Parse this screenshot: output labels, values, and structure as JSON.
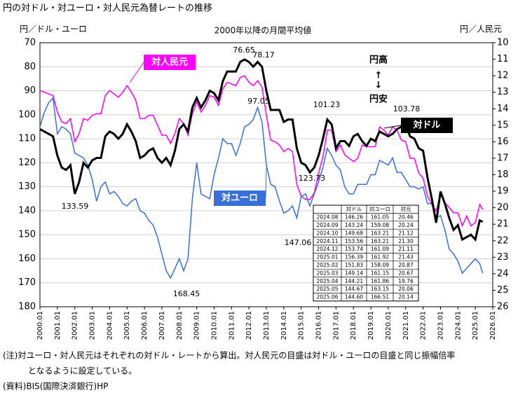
{
  "chart_data": {
    "type": "line",
    "title": "円の対ドル・対ユーロ・対人民元為替レートの推移",
    "subtitle": "2000年以降の月間平均値",
    "y_label": "円／ドル・ユーロ",
    "y2_label": "円／人民元",
    "x": [
      2000,
      2000.25,
      2000.5,
      2000.75,
      2001,
      2001.25,
      2001.5,
      2001.75,
      2002,
      2002.25,
      2002.5,
      2002.75,
      2003,
      2003.25,
      2003.5,
      2003.75,
      2004,
      2004.25,
      2004.5,
      2004.75,
      2005,
      2005.25,
      2005.5,
      2005.75,
      2006,
      2006.25,
      2006.5,
      2006.75,
      2007,
      2007.25,
      2007.5,
      2007.75,
      2008,
      2008.25,
      2008.5,
      2008.75,
      2009,
      2009.25,
      2009.5,
      2009.75,
      2010,
      2010.25,
      2010.5,
      2010.75,
      2011,
      2011.25,
      2011.5,
      2011.75,
      2012,
      2012.25,
      2012.5,
      2012.75,
      2013,
      2013.25,
      2013.5,
      2013.75,
      2014,
      2014.25,
      2014.5,
      2014.75,
      2015,
      2015.25,
      2015.5,
      2015.75,
      2016,
      2016.25,
      2016.5,
      2016.75,
      2017,
      2017.25,
      2017.5,
      2017.75,
      2018,
      2018.25,
      2018.5,
      2018.75,
      2019,
      2019.25,
      2019.5,
      2019.75,
      2020,
      2020.25,
      2020.5,
      2020.75,
      2021,
      2021.25,
      2021.5,
      2021.75,
      2022,
      2022.25,
      2022.5,
      2022.75,
      2023,
      2023.25,
      2023.5,
      2023.75,
      2024,
      2024.25,
      2024.5,
      2024.75,
      2025,
      2025.25,
      2025.42
    ],
    "series": [
      {
        "name": "対ドル",
        "color": "#000000",
        "values": [
          106,
          107,
          108,
          109,
          117,
          122,
          123,
          121,
          133,
          128,
          120,
          122,
          119,
          118,
          118,
          109,
          107,
          108,
          110,
          108,
          104,
          107,
          111,
          118,
          117,
          115,
          114,
          118,
          120,
          118,
          121,
          115,
          106,
          104,
          107,
          97,
          93,
          97,
          94,
          90,
          91,
          94,
          86,
          82,
          82,
          82,
          78,
          77,
          78,
          80,
          78,
          80,
          90,
          98,
          98,
          98,
          103,
          102,
          102,
          114,
          120,
          121,
          124,
          122,
          117,
          110,
          102,
          104,
          114,
          111,
          111,
          113,
          109,
          108,
          111,
          113,
          110,
          111,
          107,
          108,
          109,
          108,
          106,
          105,
          104,
          109,
          110,
          114,
          115,
          126,
          135,
          145,
          132,
          137,
          143,
          148,
          146,
          152,
          151,
          150,
          152,
          144,
          144.6
        ]
      },
      {
        "name": "対ユーロ",
        "color": "#3a6fd8",
        "values": [
          105,
          99,
          95,
          93,
          108,
          105,
          106,
          108,
          116,
          117,
          118,
          121,
          127,
          136,
          130,
          128,
          133,
          132,
          134,
          137,
          138,
          136,
          135,
          140,
          141,
          144,
          146,
          151,
          158,
          165,
          168,
          164,
          160,
          165,
          160,
          135,
          120,
          133,
          134,
          135,
          125,
          118,
          110,
          112,
          112,
          117,
          112,
          105,
          104,
          102,
          97,
          103,
          121,
          129,
          130,
          136,
          141,
          140,
          138,
          143,
          134,
          133,
          138,
          133,
          128,
          122,
          114,
          117,
          121,
          123,
          130,
          133,
          133,
          129,
          129,
          129,
          125,
          125,
          119,
          120,
          121,
          118,
          124,
          124,
          127,
          130,
          130,
          131,
          130,
          137,
          137,
          143,
          142,
          148,
          156,
          158,
          161,
          166,
          164,
          162,
          160,
          162,
          166
        ]
      },
      {
        "name": "対人民元",
        "color": "#ff00ff",
        "axis": "y2",
        "values": [
          12.9,
          13.0,
          13.1,
          13.2,
          14.2,
          14.8,
          14.9,
          14.6,
          16.0,
          15.5,
          14.6,
          14.7,
          14.4,
          14.3,
          14.3,
          13.2,
          12.9,
          13.1,
          13.3,
          13.0,
          12.6,
          13.0,
          13.5,
          14.6,
          14.6,
          14.4,
          14.4,
          15.0,
          15.6,
          15.6,
          16.1,
          15.5,
          14.6,
          14.9,
          15.6,
          14.3,
          13.6,
          14.2,
          13.8,
          13.2,
          13.3,
          13.8,
          12.8,
          12.4,
          12.5,
          12.6,
          12.1,
          12.0,
          12.4,
          12.6,
          12.3,
          12.7,
          14.4,
          15.9,
          16.0,
          16.2,
          16.6,
          16.4,
          16.6,
          18.6,
          19.3,
          19.5,
          19.5,
          19.1,
          17.9,
          16.9,
          15.3,
          15.3,
          16.6,
          16.2,
          16.8,
          17.0,
          17.2,
          17.0,
          16.2,
          16.3,
          16.3,
          16.3,
          15.1,
          15.3,
          15.6,
          15.1,
          15.3,
          15.9,
          16.0,
          17.0,
          17.0,
          17.9,
          18.2,
          19.3,
          19.8,
          20.2,
          19.2,
          19.7,
          20.0,
          20.3,
          20.3,
          21.1,
          20.5,
          21.1,
          20.9,
          19.8,
          20.1
        ]
      }
    ],
    "xlim": [
      2000,
      2026
    ],
    "xticks": [
      {
        "value": 2000,
        "label": "2000.01"
      },
      {
        "value": 2001,
        "label": "2001.01"
      },
      {
        "value": 2002,
        "label": "2002.01"
      },
      {
        "value": 2003,
        "label": "2003.01"
      },
      {
        "value": 2004,
        "label": "2004.01"
      },
      {
        "value": 2005,
        "label": "2005.01"
      },
      {
        "value": 2006,
        "label": "2006.01"
      },
      {
        "value": 2007,
        "label": "2007.01"
      },
      {
        "value": 2008,
        "label": "2008.01"
      },
      {
        "value": 2009,
        "label": "2009.01"
      },
      {
        "value": 2010,
        "label": "2010.01"
      },
      {
        "value": 2011,
        "label": "2011.01"
      },
      {
        "value": 2012,
        "label": "2012.01"
      },
      {
        "value": 2013,
        "label": "2013.01"
      },
      {
        "value": 2014,
        "label": "2014.01"
      },
      {
        "value": 2015,
        "label": "2015.01"
      },
      {
        "value": 2016,
        "label": "2016.01"
      },
      {
        "value": 2017,
        "label": "2017.01"
      },
      {
        "value": 2018,
        "label": "2018.01"
      },
      {
        "value": 2019,
        "label": "2019.01"
      },
      {
        "value": 2020,
        "label": "2020.01"
      },
      {
        "value": 2021,
        "label": "2021.01"
      },
      {
        "value": 2022,
        "label": "2022.01"
      },
      {
        "value": 2023,
        "label": "2023.01"
      },
      {
        "value": 2024,
        "label": "2024.01"
      },
      {
        "value": 2025,
        "label": "2025.01"
      },
      {
        "value": 2026,
        "label": "2026.01"
      }
    ],
    "ylim": [
      70,
      180
    ],
    "yticks": [
      70,
      80,
      90,
      100,
      110,
      120,
      130,
      140,
      150,
      160,
      170,
      180
    ],
    "y_inverted": true,
    "y2lim": [
      10,
      26
    ],
    "y2ticks": [
      10,
      11,
      12,
      13,
      14,
      15,
      16,
      17,
      18,
      19,
      20,
      21,
      22,
      23,
      24,
      25,
      26
    ],
    "annotations": [
      "76.65",
      "78.17",
      "97.05",
      "101.23",
      "103.78",
      "133.59",
      "123.73",
      "147.06",
      "168.45",
      "円高",
      "↑",
      "↓",
      "円安"
    ],
    "table": {
      "columns": [
        "対ドル",
        "対ユーロ",
        "対元"
      ],
      "rows": [
        [
          "2024.08",
          "146.26",
          "161.05",
          "20.46"
        ],
        [
          "2024.09",
          "143.24",
          "159.08",
          "20.24"
        ],
        [
          "2024.10",
          "149.68",
          "163.21",
          "21.12"
        ],
        [
          "2024.11",
          "153.56",
          "163.21",
          "21.30"
        ],
        [
          "2024.12",
          "153.74",
          "161.09",
          "21.11"
        ],
        [
          "2025.01",
          "156.39",
          "161.92",
          "21.43"
        ],
        [
          "2025.02",
          "151.83",
          "158.09",
          "20.87"
        ],
        [
          "2025.03",
          "149.14",
          "161.15",
          "20.67"
        ],
        [
          "2025.04",
          "144.21",
          "161.86",
          "19.76"
        ],
        [
          "2025.05",
          "144.67",
          "163.15",
          "20.06"
        ],
        [
          "2025.06",
          "144.60",
          "166.51",
          "20.14"
        ]
      ]
    },
    "notes": [
      "(注)対ユーロ・対人民元はそれぞれの対ドル・レートから算出。対人民元の目盛は対ドル・ユーロの目盛と同じ振幅倍率",
      "となるように設定している。",
      "(資料)BIS(国際決済銀行)HP"
    ]
  }
}
